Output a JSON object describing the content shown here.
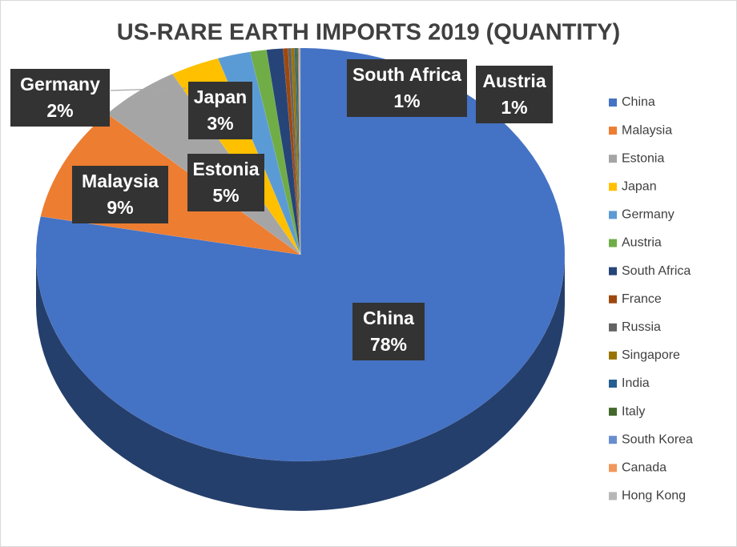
{
  "chart_data": {
    "type": "pie3d",
    "title": "US-RARE EARTH IMPORTS 2019 (QUANTITY)",
    "categories": [
      "China",
      "Malaysia",
      "Estonia",
      "Japan",
      "Germany",
      "Austria",
      "South Africa",
      "France",
      "Russia",
      "Singapore",
      "India",
      "Italy",
      "South Korea",
      "Canada",
      "Hong Kong"
    ],
    "values": [
      78,
      9,
      5,
      3,
      2,
      1,
      1,
      0.3,
      0.2,
      0.2,
      0.1,
      0.1,
      0.05,
      0.05,
      0.05
    ],
    "value_labels": [
      "78%",
      "9%",
      "5%",
      "3%",
      "2%",
      "1%",
      "1%",
      null,
      null,
      null,
      null,
      null,
      null,
      null,
      null
    ],
    "colors": [
      "#4472c4",
      "#ed7d31",
      "#a5a5a5",
      "#ffc000",
      "#5b9bd5",
      "#70ad47",
      "#264478",
      "#9e480e",
      "#636363",
      "#997300",
      "#255e91",
      "#43682b",
      "#698ed0",
      "#f1975a",
      "#b7b7b7"
    ],
    "legend": "right"
  }
}
